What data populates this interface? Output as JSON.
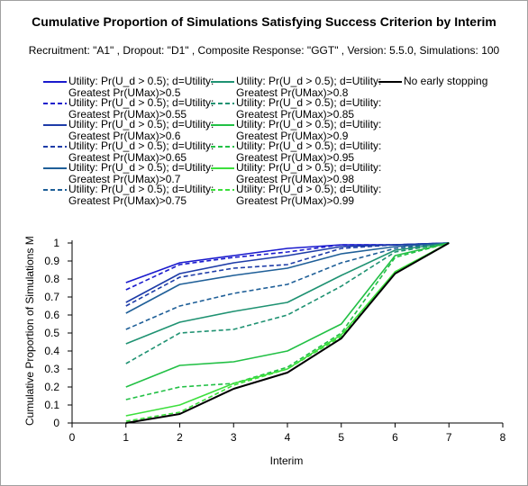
{
  "chart_data": {
    "type": "line",
    "title": "Cumulative Proportion of Simulations Satisfying Success Criterion by Interim",
    "subtitle": "Recruitment: \"A1\" , Dropout: \"D1\" , Composite Response: \"GGT\" , Version: 5.5.0, Simulations: 100",
    "xlabel": "Interim",
    "ylabel": "Cumulative Proportion of Simulations Me...",
    "xlim": [
      0,
      8
    ],
    "ylim": [
      0,
      1
    ],
    "xticks": [
      "0",
      "1",
      "2",
      "3",
      "4",
      "5",
      "6",
      "7",
      "8"
    ],
    "yticks": [
      "0",
      "0.1",
      "0.2",
      "0.3",
      "0.4",
      "0.5",
      "0.6",
      "0.7",
      "0.8",
      "0.9",
      "1"
    ],
    "grid": false,
    "legend_placement": "top",
    "x": [
      1,
      2,
      3,
      4,
      5,
      6,
      7
    ],
    "series": [
      {
        "name": "Utility: Pr(U_d > 0.5); d=Utility: Greatest Pr(UMax)>0.5",
        "color": "#1a1acd",
        "dash": "solid",
        "values": [
          0.78,
          0.89,
          0.93,
          0.97,
          0.99,
          0.99,
          1.0
        ]
      },
      {
        "name": "Utility: Pr(U_d > 0.5); d=Utility: Greatest Pr(UMax)>0.55",
        "color": "#1a1acd",
        "dash": "dashed",
        "values": [
          0.74,
          0.88,
          0.92,
          0.95,
          0.99,
          0.99,
          1.0
        ]
      },
      {
        "name": "Utility: Pr(U_d > 0.5); d=Utility: Greatest Pr(UMax)>0.6",
        "color": "#1e3ca8",
        "dash": "solid",
        "values": [
          0.67,
          0.83,
          0.89,
          0.93,
          0.98,
          0.99,
          1.0
        ]
      },
      {
        "name": "Utility: Pr(U_d > 0.5); d=Utility: Greatest Pr(UMax)>0.65",
        "color": "#1e3ca8",
        "dash": "dashed",
        "values": [
          0.65,
          0.81,
          0.86,
          0.88,
          0.97,
          0.99,
          1.0
        ]
      },
      {
        "name": "Utility: Pr(U_d > 0.5); d=Utility: Greatest Pr(UMax)>0.7",
        "color": "#1f5f98",
        "dash": "solid",
        "values": [
          0.61,
          0.77,
          0.82,
          0.86,
          0.94,
          0.98,
          1.0
        ]
      },
      {
        "name": "Utility: Pr(U_d > 0.5); d=Utility: Greatest Pr(UMax)>0.75",
        "color": "#1f5f98",
        "dash": "dashed",
        "values": [
          0.52,
          0.65,
          0.72,
          0.77,
          0.89,
          0.97,
          1.0
        ]
      },
      {
        "name": "Utility: Pr(U_d > 0.5); d=Utility: Greatest Pr(UMax)>0.8",
        "color": "#1f9272",
        "dash": "solid",
        "values": [
          0.44,
          0.56,
          0.62,
          0.67,
          0.82,
          0.96,
          1.0
        ]
      },
      {
        "name": "Utility: Pr(U_d > 0.5); d=Utility: Greatest Pr(UMax)>0.85",
        "color": "#1f9272",
        "dash": "dashed",
        "values": [
          0.33,
          0.5,
          0.52,
          0.6,
          0.76,
          0.95,
          1.0
        ]
      },
      {
        "name": "Utility: Pr(U_d > 0.5); d=Utility: Greatest Pr(UMax)>0.9",
        "color": "#22c045",
        "dash": "solid",
        "values": [
          0.2,
          0.32,
          0.34,
          0.4,
          0.55,
          0.93,
          1.0
        ]
      },
      {
        "name": "Utility: Pr(U_d > 0.5); d=Utility: Greatest Pr(UMax)>0.95",
        "color": "#22c045",
        "dash": "dashed",
        "values": [
          0.13,
          0.2,
          0.22,
          0.31,
          0.5,
          0.92,
          1.0
        ]
      },
      {
        "name": "Utility: Pr(U_d > 0.5); d=Utility: Greatest Pr(UMax)>0.98",
        "color": "#3cdf3c",
        "dash": "solid",
        "values": [
          0.04,
          0.1,
          0.22,
          0.3,
          0.49,
          0.84,
          1.0
        ]
      },
      {
        "name": "Utility: Pr(U_d > 0.5); d=Utility: Greatest Pr(UMax)>0.99",
        "color": "#3cdf3c",
        "dash": "dashed",
        "values": [
          0.01,
          0.06,
          0.21,
          0.3,
          0.48,
          0.84,
          1.0
        ]
      },
      {
        "name": "No early stopping",
        "color": "#000000",
        "dash": "solid",
        "values": [
          0.0,
          0.05,
          0.19,
          0.28,
          0.47,
          0.83,
          1.0
        ]
      }
    ]
  }
}
